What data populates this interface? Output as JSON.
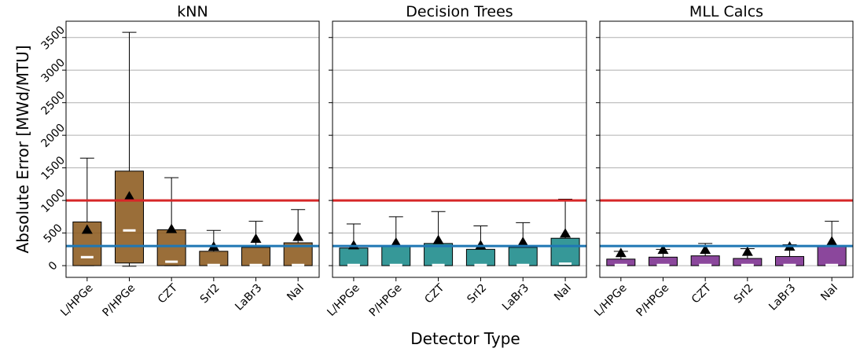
{
  "chart_data": {
    "type": "box",
    "ylabel": "Absolute Error [MWd/MTU]",
    "xlabel": "Detector Type",
    "ylim": [
      -180,
      3750
    ],
    "yticks": [
      0,
      500,
      1000,
      1500,
      2000,
      2500,
      3000,
      3500
    ],
    "grid": "horizontal",
    "categories": [
      "L/HPGe",
      "P/HPGe",
      "CZT",
      "SrI2",
      "LaBr3",
      "NaI"
    ],
    "reference_lines": [
      {
        "value": 1000,
        "color": "#d62728"
      },
      {
        "value": 300,
        "color": "#1f77b4"
      }
    ],
    "panels": [
      {
        "title": "kNN",
        "color": "#8c5a1e",
        "boxes": [
          {
            "min": 0,
            "q1": 0,
            "median": 130,
            "q3": 670,
            "max": 1650,
            "mean": 550
          },
          {
            "min": -10,
            "q1": 40,
            "median": 540,
            "q3": 1450,
            "max": 3580,
            "mean": 1060
          },
          {
            "min": 0,
            "q1": 0,
            "median": 60,
            "q3": 550,
            "max": 1350,
            "mean": 560
          },
          {
            "min": 0,
            "q1": 0,
            "median": 10,
            "q3": 220,
            "max": 540,
            "mean": 290
          },
          {
            "min": 0,
            "q1": 0,
            "median": 10,
            "q3": 280,
            "max": 680,
            "mean": 410
          },
          {
            "min": 0,
            "q1": 0,
            "median": 10,
            "q3": 350,
            "max": 860,
            "mean": 440
          }
        ]
      },
      {
        "title": "Decision Trees",
        "color": "#1a8a8a",
        "boxes": [
          {
            "min": 0,
            "q1": 0,
            "median": 10,
            "q3": 270,
            "max": 640,
            "mean": 310
          },
          {
            "min": 0,
            "q1": 0,
            "median": 10,
            "q3": 300,
            "max": 750,
            "mean": 350
          },
          {
            "min": 0,
            "q1": 0,
            "median": 10,
            "q3": 340,
            "max": 830,
            "mean": 390
          },
          {
            "min": 0,
            "q1": 0,
            "median": 10,
            "q3": 250,
            "max": 610,
            "mean": 310
          },
          {
            "min": 0,
            "q1": 0,
            "median": 10,
            "q3": 280,
            "max": 660,
            "mean": 360
          },
          {
            "min": 0,
            "q1": 0,
            "median": 30,
            "q3": 420,
            "max": 1020,
            "mean": 490
          }
        ]
      },
      {
        "title": "MLL Calcs",
        "color": "#7b2d8e",
        "boxes": [
          {
            "min": 0,
            "q1": 0,
            "median": 10,
            "q3": 100,
            "max": 220,
            "mean": 190
          },
          {
            "min": 0,
            "q1": 0,
            "median": 10,
            "q3": 130,
            "max": 250,
            "mean": 240
          },
          {
            "min": 0,
            "q1": 0,
            "median": 10,
            "q3": 150,
            "max": 340,
            "mean": 240
          },
          {
            "min": 0,
            "q1": 0,
            "median": 10,
            "q3": 110,
            "max": 260,
            "mean": 210
          },
          {
            "min": 0,
            "q1": 0,
            "median": 10,
            "q3": 140,
            "max": 320,
            "mean": 290
          },
          {
            "min": 0,
            "q1": 0,
            "median": 10,
            "q3": 300,
            "max": 680,
            "mean": 370
          }
        ]
      }
    ]
  }
}
